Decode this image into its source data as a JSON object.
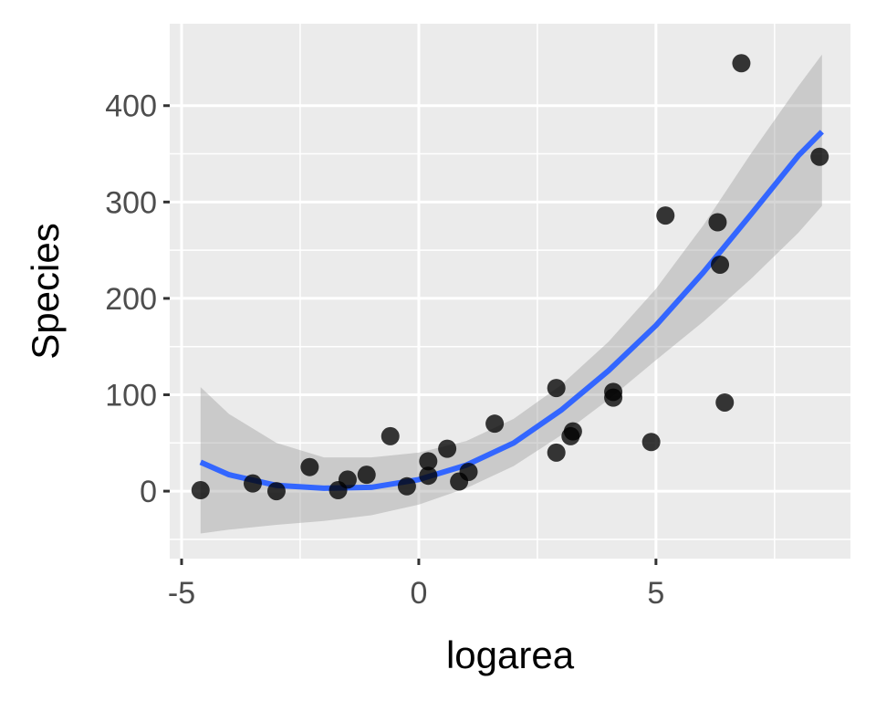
{
  "chart_data": {
    "type": "scatter",
    "title": "",
    "xlabel": "logarea",
    "ylabel": "Species",
    "xlim": [
      -5.25,
      9.1
    ],
    "ylim": [
      -70,
      485
    ],
    "x_ticks": [
      -5,
      0,
      5
    ],
    "x_tick_labels": [
      "-5",
      "0",
      "5"
    ],
    "x_minor_ticks": [
      -2.5,
      2.5,
      7.5
    ],
    "y_ticks": [
      0,
      100,
      200,
      300,
      400
    ],
    "y_tick_labels": [
      "0",
      "100",
      "200",
      "300",
      "400"
    ],
    "y_minor_ticks": [
      -50,
      50,
      150,
      250,
      350
    ],
    "grid": true,
    "legend": null,
    "background": "#ebebeb",
    "points": {
      "color": "#000000",
      "x": [
        -4.6,
        -3.5,
        -3.0,
        -2.3,
        -1.7,
        -1.5,
        -1.1,
        -0.6,
        -0.25,
        0.2,
        0.2,
        0.6,
        0.85,
        1.05,
        1.6,
        2.9,
        2.9,
        3.2,
        3.25,
        4.1,
        4.1,
        4.9,
        5.2,
        6.3,
        6.35,
        6.45,
        6.8,
        8.45
      ],
      "y": [
        1,
        8,
        0,
        25,
        1,
        12,
        17,
        57,
        5,
        31,
        16,
        44,
        10,
        20,
        70,
        107,
        40,
        57,
        62,
        103,
        97,
        51,
        286,
        279,
        235,
        92,
        444,
        347
      ]
    },
    "smooth": {
      "method": "quadratic fit",
      "color": "#3366ff",
      "ribbon_color": "#999999",
      "ribbon_opacity": 0.4,
      "x": [
        -4.6,
        -4.0,
        -3.0,
        -2.0,
        -1.0,
        0.0,
        1.0,
        2.0,
        3.0,
        4.0,
        5.0,
        6.0,
        7.0,
        8.0,
        8.5
      ],
      "y": [
        30,
        17,
        6,
        3,
        4,
        12,
        27,
        50,
        84,
        125,
        172,
        227,
        287,
        348,
        373
      ],
      "ymin": [
        -44,
        -40,
        -35,
        -31,
        -25,
        -14,
        3,
        26,
        58,
        95,
        136,
        176,
        220,
        268,
        296
      ],
      "ymax": [
        108,
        80,
        50,
        35,
        35,
        40,
        52,
        75,
        110,
        155,
        210,
        276,
        350,
        420,
        453
      ]
    }
  }
}
